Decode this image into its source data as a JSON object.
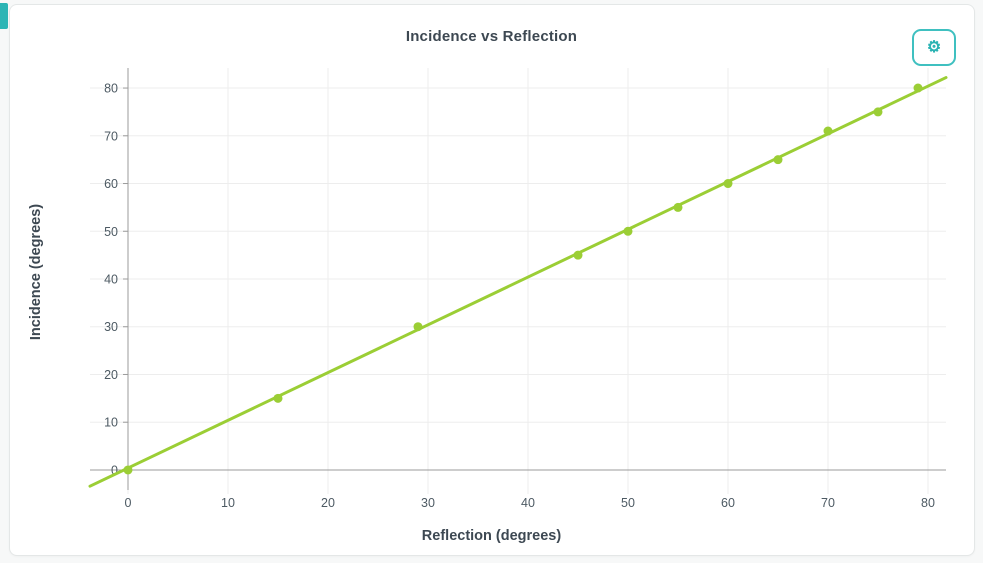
{
  "page": {
    "background": "#f7f8f8"
  },
  "card": {
    "border_color": "#e4e7e7"
  },
  "accent": {
    "color": "#2cb5b5"
  },
  "header": {
    "title": "Incidence vs Reflection"
  },
  "settings_button": {
    "icon": "gear-icon",
    "glyph": "⚙",
    "color": "#2ab3b3",
    "border_color": "#3fc0c0"
  },
  "chart_data": {
    "type": "scatter",
    "title": "Incidence vs Reflection",
    "xlabel": "Reflection (degrees)",
    "ylabel": "Incidence (degrees)",
    "xlim": [
      -3.8,
      81.8
    ],
    "ylim": [
      -4.2,
      84.2
    ],
    "xticks": [
      0,
      10,
      20,
      30,
      40,
      50,
      60,
      70,
      80
    ],
    "yticks": [
      0,
      10,
      20,
      30,
      40,
      50,
      60,
      70,
      80
    ],
    "grid": true,
    "legend": "none",
    "points": [
      [
        0,
        0
      ],
      [
        15,
        15
      ],
      [
        29,
        30
      ],
      [
        45,
        45
      ],
      [
        50,
        50
      ],
      [
        55,
        55
      ],
      [
        60,
        60
      ],
      [
        65,
        65
      ],
      [
        70,
        71
      ],
      [
        75,
        75
      ],
      [
        79,
        80
      ]
    ],
    "fit_line": {
      "slope": 1.0,
      "intercept": 0.4,
      "x_start": -3.8,
      "x_end": 81.8
    },
    "colors": {
      "series": "#9bce35",
      "grid": "#ededed",
      "axis": "#9b9b9b",
      "tick_text": "#4d5a63"
    }
  }
}
